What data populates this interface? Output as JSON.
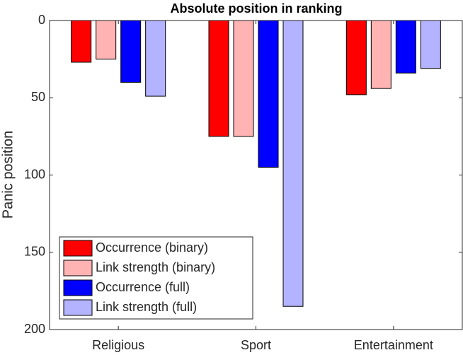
{
  "chart_data": {
    "type": "bar",
    "title": "Absolute position in ranking",
    "ylabel": "Panic position",
    "categories": [
      "Religious",
      "Sport",
      "Entertainment"
    ],
    "series": [
      {
        "name": "Occurrence (binary)",
        "color": "#ff0000",
        "values": [
          27,
          75,
          48
        ]
      },
      {
        "name": "Link strength (binary)",
        "color": "#ffb3b3",
        "values": [
          25,
          75,
          44
        ]
      },
      {
        "name": "Occurrence (full)",
        "color": "#0000ff",
        "values": [
          40,
          95,
          34
        ]
      },
      {
        "name": "Link strength (full)",
        "color": "#b3b3ff",
        "values": [
          49,
          185,
          31
        ]
      }
    ],
    "ylim": [
      0,
      200
    ],
    "yticks": [
      0,
      50,
      100,
      150,
      200
    ],
    "y_reversed": true,
    "grid": false,
    "legend": "lower left"
  }
}
